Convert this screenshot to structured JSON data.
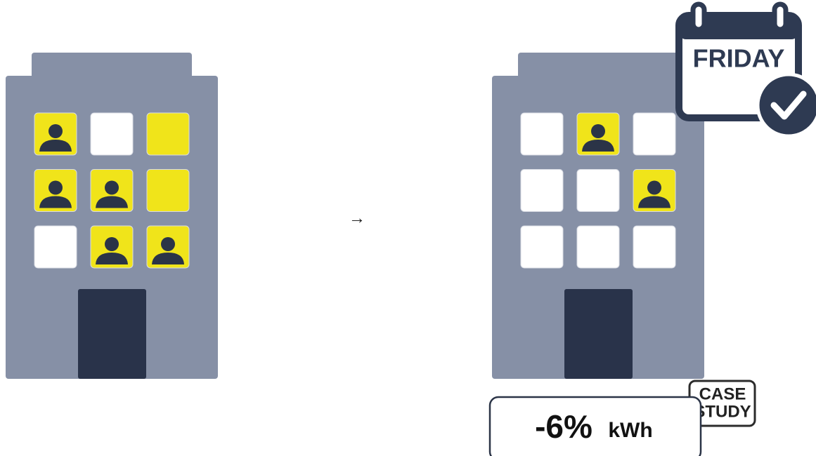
{
  "arrow": "→",
  "calendar": {
    "day": "FRIDAY"
  },
  "badge": {
    "lines": [
      "CASE",
      "STUDY"
    ]
  },
  "result": {
    "change": "-6%",
    "unit": "kWh"
  }
}
